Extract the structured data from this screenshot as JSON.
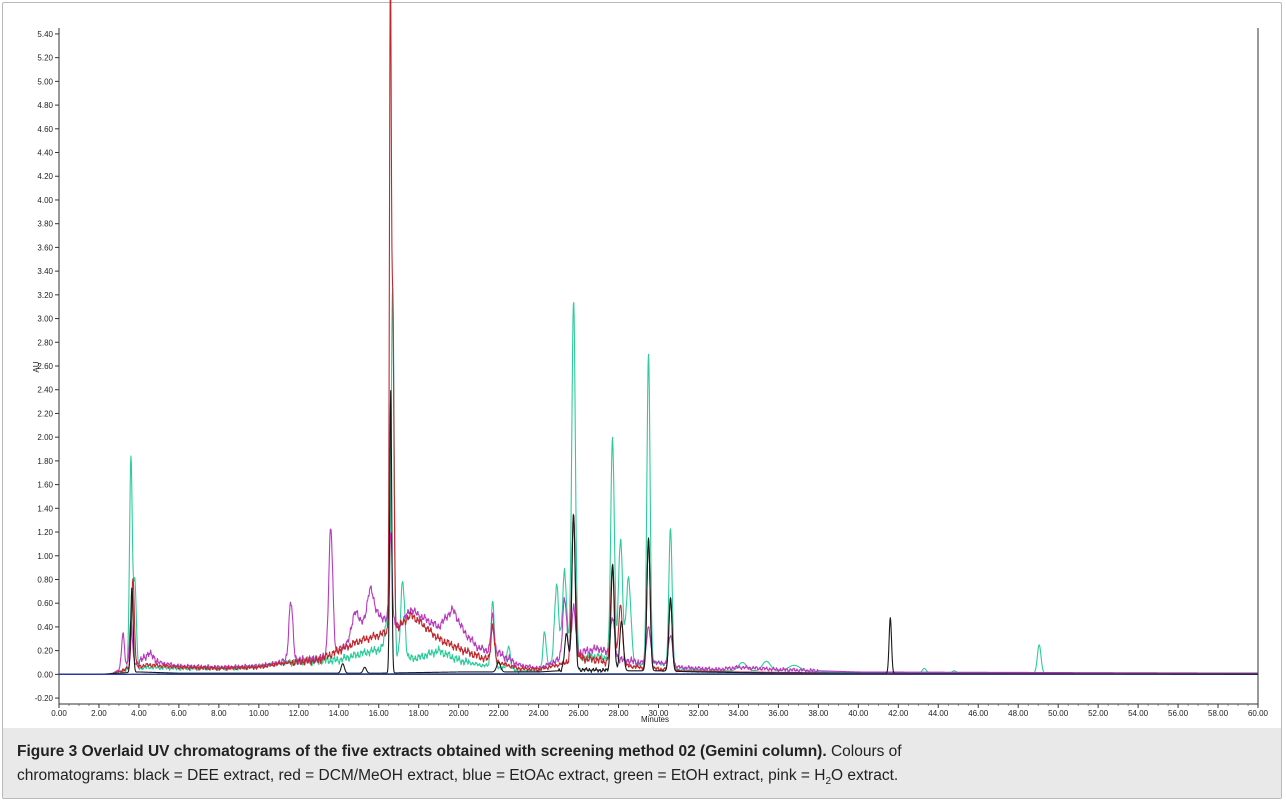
{
  "caption": {
    "label": "Figure 3",
    "title": "Overlaid UV chromatograms of the five extracts obtained with screening method 02 (Gemini column).",
    "text_1": "Colours of",
    "text_2": "chromatograms: black = DEE extract, red = DCM/MeOH extract, blue = EtOAc extract, green = EtOH extract, pink = H",
    "subscript": "2",
    "text_3": "O extract."
  },
  "chart_data": {
    "type": "line",
    "title": "",
    "xlabel": "Minutes",
    "ylabel": "AU",
    "xlim": [
      0,
      60
    ],
    "ylim": [
      -0.25,
      5.45
    ],
    "x_ticks": [
      0,
      2,
      4,
      6,
      8,
      10,
      12,
      14,
      16,
      18,
      20,
      22,
      24,
      26,
      28,
      30,
      32,
      34,
      36,
      38,
      40,
      42,
      44,
      46,
      48,
      50,
      52,
      54,
      56,
      58,
      60
    ],
    "x_tick_labels": [
      "0.00",
      "2.00",
      "4.00",
      "6.00",
      "8.00",
      "10.00",
      "12.00",
      "14.00",
      "16.00",
      "18.00",
      "20.00",
      "22.00",
      "24.00",
      "26.00",
      "28.00",
      "30.00",
      "32.00",
      "34.00",
      "36.00",
      "38.00",
      "40.00",
      "42.00",
      "44.00",
      "46.00",
      "48.00",
      "50.00",
      "52.00",
      "54.00",
      "56.00",
      "58.00",
      "60.00"
    ],
    "y_ticks": [
      -0.2,
      0,
      0.2,
      0.4,
      0.6,
      0.8,
      1.0,
      1.2,
      1.4,
      1.6,
      1.8,
      2.0,
      2.2,
      2.4,
      2.6,
      2.8,
      3.0,
      3.2,
      3.4,
      3.6,
      3.8,
      4.0,
      4.2,
      4.4,
      4.6,
      4.8,
      5.0,
      5.2,
      5.4
    ],
    "y_tick_labels": [
      "-0.20",
      "0.00",
      "0.20",
      "0.40",
      "0.60",
      "0.80",
      "1.00",
      "1.20",
      "1.40",
      "1.60",
      "1.80",
      "2.00",
      "2.20",
      "2.40",
      "2.60",
      "2.80",
      "3.00",
      "3.20",
      "3.40",
      "3.60",
      "3.80",
      "4.00",
      "4.20",
      "4.40",
      "4.60",
      "4.80",
      "5.00",
      "5.20",
      "5.40"
    ],
    "grid": false,
    "series": [
      {
        "color": "#2ecc9a",
        "baseline": [
          [
            0,
            0
          ],
          [
            2.4,
            0
          ],
          [
            3.4,
            0.04
          ],
          [
            4.5,
            0.06
          ],
          [
            6,
            0.05
          ],
          [
            9,
            0.05
          ],
          [
            10.5,
            0.08
          ],
          [
            12,
            0.11
          ],
          [
            14,
            0.12
          ],
          [
            15,
            0.17
          ],
          [
            16,
            0.21
          ],
          [
            17,
            0.13
          ],
          [
            18,
            0.14
          ],
          [
            19,
            0.2
          ],
          [
            20,
            0.12
          ],
          [
            21,
            0.08
          ],
          [
            22,
            0.06
          ],
          [
            23,
            0.03
          ],
          [
            24,
            0.03
          ],
          [
            24.6,
            0.08
          ],
          [
            25,
            0.16
          ],
          [
            25.3,
            0.22
          ],
          [
            26,
            0.14
          ],
          [
            27,
            0.15
          ],
          [
            28,
            0.12
          ],
          [
            29,
            0.08
          ],
          [
            30,
            0.1
          ],
          [
            31,
            0.04
          ],
          [
            33,
            0.03
          ],
          [
            36,
            0.03
          ],
          [
            38,
            0.02
          ],
          [
            42,
            0.01
          ],
          [
            48,
            0.01
          ],
          [
            52,
            0.01
          ],
          [
            60,
            0.01
          ]
        ],
        "peaks": [
          [
            3.6,
            1.78,
            0.07
          ],
          [
            3.8,
            0.72,
            0.07
          ],
          [
            16.5,
            0.4,
            0.15
          ],
          [
            16.7,
            2.95,
            0.07
          ],
          [
            17.2,
            0.65,
            0.1
          ],
          [
            21.7,
            0.55,
            0.08
          ],
          [
            22.5,
            0.2,
            0.08
          ],
          [
            24.3,
            0.3,
            0.08
          ],
          [
            24.9,
            0.62,
            0.1
          ],
          [
            25.3,
            0.65,
            0.1
          ],
          [
            25.75,
            2.98,
            0.09
          ],
          [
            27.7,
            1.87,
            0.09
          ],
          [
            28.1,
            1.02,
            0.1
          ],
          [
            28.5,
            0.7,
            0.12
          ],
          [
            29.5,
            2.6,
            0.08
          ],
          [
            30.6,
            1.18,
            0.08
          ],
          [
            34.2,
            0.07,
            0.2
          ],
          [
            35.4,
            0.08,
            0.2
          ],
          [
            36.8,
            0.05,
            0.3
          ],
          [
            43.3,
            0.04,
            0.1
          ],
          [
            44.8,
            0.02,
            0.1
          ],
          [
            49.05,
            0.24,
            0.09
          ]
        ]
      },
      {
        "color": "#b83bbf",
        "baseline": [
          [
            0,
            0
          ],
          [
            2.6,
            0
          ],
          [
            3.4,
            0.08
          ],
          [
            4,
            0.1
          ],
          [
            4.5,
            0.18
          ],
          [
            5,
            0.1
          ],
          [
            6,
            0.07
          ],
          [
            8,
            0.06
          ],
          [
            10,
            0.07
          ],
          [
            11,
            0.1
          ],
          [
            12,
            0.12
          ],
          [
            13,
            0.13
          ],
          [
            14,
            0.2
          ],
          [
            14.7,
            0.3
          ],
          [
            15.2,
            0.45
          ],
          [
            16,
            0.5
          ],
          [
            17,
            0.4
          ],
          [
            17.6,
            0.55
          ],
          [
            18,
            0.5
          ],
          [
            19,
            0.4
          ],
          [
            19.7,
            0.55
          ],
          [
            20.3,
            0.35
          ],
          [
            21,
            0.22
          ],
          [
            22,
            0.18
          ],
          [
            23,
            0.08
          ],
          [
            24,
            0.05
          ],
          [
            25,
            0.12
          ],
          [
            26,
            0.18
          ],
          [
            27,
            0.22
          ],
          [
            28,
            0.13
          ],
          [
            29,
            0.1
          ],
          [
            30,
            0.1
          ],
          [
            31,
            0.06
          ],
          [
            33,
            0.04
          ],
          [
            34,
            0.06
          ],
          [
            36,
            0.04
          ],
          [
            40,
            0.02
          ],
          [
            60,
            0.01
          ]
        ],
        "peaks": [
          [
            3.2,
            0.28,
            0.07
          ],
          [
            3.6,
            0.36,
            0.07
          ],
          [
            11.6,
            0.5,
            0.1
          ],
          [
            13.6,
            1.05,
            0.1
          ],
          [
            14.8,
            0.2,
            0.15
          ],
          [
            15.6,
            0.25,
            0.15
          ],
          [
            16.6,
            0.75,
            0.07
          ],
          [
            21.7,
            0.3,
            0.08
          ],
          [
            25.3,
            0.5,
            0.1
          ],
          [
            25.75,
            0.4,
            0.1
          ],
          [
            27.7,
            0.32,
            0.1
          ],
          [
            29.5,
            0.3,
            0.1
          ],
          [
            30.6,
            0.25,
            0.1
          ]
        ]
      },
      {
        "color": "#c0282d",
        "baseline": [
          [
            0,
            0
          ],
          [
            2.6,
            0
          ],
          [
            3.4,
            0.05
          ],
          [
            4.5,
            0.08
          ],
          [
            6,
            0.06
          ],
          [
            8,
            0.05
          ],
          [
            10,
            0.06
          ],
          [
            11,
            0.09
          ],
          [
            13,
            0.12
          ],
          [
            14,
            0.2
          ],
          [
            15,
            0.28
          ],
          [
            16,
            0.33
          ],
          [
            17,
            0.4
          ],
          [
            17.6,
            0.5
          ],
          [
            18,
            0.45
          ],
          [
            19,
            0.3
          ],
          [
            20,
            0.22
          ],
          [
            21,
            0.15
          ],
          [
            22,
            0.1
          ],
          [
            23,
            0.05
          ],
          [
            24,
            0.04
          ],
          [
            25,
            0.08
          ],
          [
            26,
            0.14
          ],
          [
            27,
            0.12
          ],
          [
            28,
            0.08
          ],
          [
            29,
            0.06
          ],
          [
            31,
            0.03
          ],
          [
            34,
            0.02
          ],
          [
            40,
            0.01
          ],
          [
            60,
            0.01
          ]
        ],
        "peaks": [
          [
            3.7,
            0.75,
            0.07
          ],
          [
            16.58,
            5.22,
            0.045
          ],
          [
            16.7,
            2.7,
            0.06
          ],
          [
            21.7,
            0.3,
            0.08
          ],
          [
            25.75,
            1.2,
            0.09
          ],
          [
            27.7,
            0.85,
            0.09
          ],
          [
            28.1,
            0.5,
            0.1
          ],
          [
            29.5,
            1.08,
            0.08
          ],
          [
            30.6,
            0.6,
            0.08
          ]
        ]
      },
      {
        "color": "#1a1a1a",
        "baseline": [
          [
            0,
            0
          ],
          [
            2,
            0
          ],
          [
            3,
            0.01
          ],
          [
            4,
            0.02
          ],
          [
            6,
            0.01
          ],
          [
            10,
            0.01
          ],
          [
            14,
            0.01
          ],
          [
            16,
            0.01
          ],
          [
            20,
            0.02
          ],
          [
            24,
            0.02
          ],
          [
            26,
            0.04
          ],
          [
            28,
            0.03
          ],
          [
            30,
            0.03
          ],
          [
            32,
            0.02
          ],
          [
            36,
            0.01
          ],
          [
            60,
            0.0
          ]
        ],
        "peaks": [
          [
            3.65,
            0.72,
            0.06
          ],
          [
            14.2,
            0.08,
            0.08
          ],
          [
            15.3,
            0.05,
            0.08
          ],
          [
            16.6,
            2.38,
            0.05
          ],
          [
            22.0,
            0.08,
            0.1
          ],
          [
            25.4,
            0.3,
            0.1
          ],
          [
            25.75,
            1.32,
            0.08
          ],
          [
            27.7,
            0.88,
            0.08
          ],
          [
            28.15,
            0.42,
            0.09
          ],
          [
            29.5,
            1.12,
            0.08
          ],
          [
            30.6,
            0.62,
            0.08
          ],
          [
            41.6,
            0.47,
            0.06
          ]
        ]
      },
      {
        "color": "#1e3fb5",
        "baseline": [
          [
            0,
            0
          ],
          [
            3,
            0
          ],
          [
            6,
            0.005
          ],
          [
            10,
            0.005
          ],
          [
            20,
            0.005
          ],
          [
            30,
            0.005
          ],
          [
            40,
            0.005
          ],
          [
            52,
            0.005
          ],
          [
            60,
            0.005
          ]
        ],
        "peaks": []
      }
    ]
  }
}
